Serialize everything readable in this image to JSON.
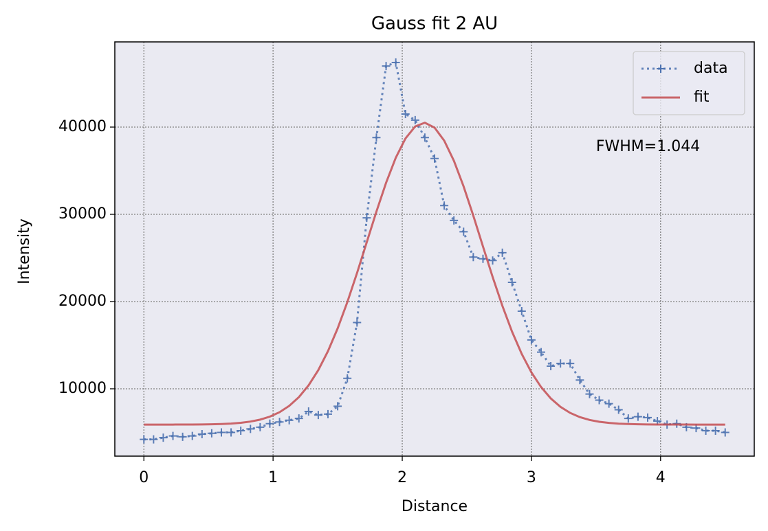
{
  "chart_data": {
    "type": "line",
    "title": "Gauss fit 2 AU",
    "xlabel": "Distance",
    "ylabel": "Intensity",
    "annotation": "FWHM=1.044",
    "x": [
      0,
      0.075,
      0.15,
      0.225,
      0.3,
      0.375,
      0.45,
      0.525,
      0.6,
      0.675,
      0.75,
      0.825,
      0.9,
      0.975,
      1.05,
      1.125,
      1.2,
      1.275,
      1.35,
      1.425,
      1.5,
      1.575,
      1.65,
      1.725,
      1.8,
      1.875,
      1.95,
      2.025,
      2.1,
      2.175,
      2.25,
      2.325,
      2.4,
      2.475,
      2.55,
      2.625,
      2.7,
      2.775,
      2.85,
      2.925,
      3,
      3.075,
      3.15,
      3.225,
      3.3,
      3.375,
      3.45,
      3.525,
      3.6,
      3.675,
      3.75,
      3.825,
      3.9,
      3.975,
      4.05,
      4.125,
      4.2,
      4.275,
      4.35,
      4.425,
      4.5
    ],
    "series": [
      {
        "name": "data",
        "color": "#4c72b0",
        "linestyle": "dotted",
        "marker": "+",
        "values": [
          4200,
          4200,
          4400,
          4600,
          4500,
          4600,
          4800,
          4900,
          5000,
          5000,
          5200,
          5400,
          5600,
          6000,
          6200,
          6400,
          6600,
          7400,
          7000,
          7100,
          8000,
          11200,
          17600,
          29600,
          38800,
          47000,
          47400,
          41500,
          40800,
          38800,
          36400,
          31000,
          29300,
          28000,
          25100,
          24900,
          24700,
          25600,
          22200,
          18900,
          15600,
          14200,
          12600,
          12900,
          12900,
          11000,
          9400,
          8700,
          8300,
          7600,
          6600,
          6800,
          6700,
          6300,
          5900,
          6000,
          5600,
          5500,
          5200,
          5200,
          5000
        ]
      },
      {
        "name": "fit",
        "color": "#c44e52",
        "linestyle": "solid",
        "values": [
          5900,
          5900,
          5900,
          5900,
          5905,
          5909,
          5918,
          5935,
          5965,
          6017,
          6103,
          6245,
          6467,
          6810,
          7315,
          8042,
          9049,
          10395,
          12138,
          14312,
          16928,
          19941,
          23273,
          26792,
          30310,
          33622,
          36486,
          38694,
          40070,
          40500,
          39940,
          38445,
          36137,
          33199,
          29850,
          26314,
          22812,
          19519,
          16554,
          13997,
          11882,
          10194,
          8896,
          7931,
          7237,
          6755,
          6432,
          6221,
          6089,
          6008,
          5960,
          5932,
          5916,
          5908,
          5904,
          5902,
          5901,
          5900,
          5900,
          5900,
          5900
        ]
      }
    ],
    "xlim": [
      -0.225,
      4.725
    ],
    "ylim": [
      2283,
      49764
    ],
    "xticks": [
      0,
      1,
      2,
      3,
      4
    ],
    "yticks": [
      10000,
      20000,
      30000,
      40000
    ],
    "grid": true,
    "legend": "upper right",
    "background": "#eaeaf2"
  }
}
